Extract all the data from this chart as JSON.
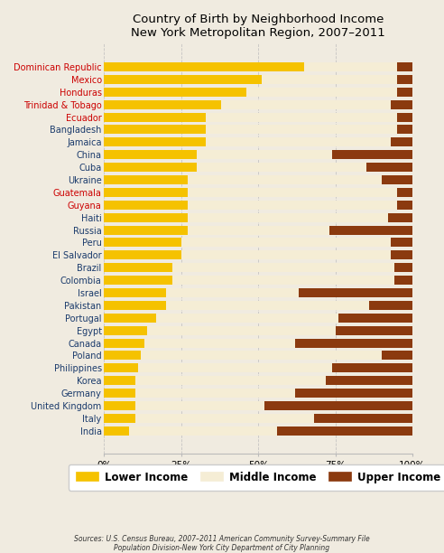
{
  "title": "Country of Birth by Neighborhood Income\nNew York Metropolitan Region, 2007–2011",
  "title_fontsize": 9.5,
  "categories": [
    "Dominican Republic",
    "Mexico",
    "Honduras",
    "Trinidad & Tobago",
    "Ecuador",
    "Bangladesh",
    "Jamaica",
    "China",
    "Cuba",
    "Ukraine",
    "Guatemala",
    "Guyana",
    "Haiti",
    "Russia",
    "Peru",
    "El Salvador",
    "Brazil",
    "Colombia",
    "Israel",
    "Pakistan",
    "Portugal",
    "Egypt",
    "Canada",
    "Poland",
    "Philippines",
    "Korea",
    "Germany",
    "United Kingdom",
    "Italy",
    "India"
  ],
  "lower": [
    65,
    51,
    46,
    38,
    33,
    33,
    33,
    30,
    30,
    27,
    27,
    27,
    27,
    27,
    25,
    25,
    22,
    22,
    20,
    20,
    17,
    14,
    13,
    12,
    11,
    10,
    10,
    10,
    10,
    8
  ],
  "middle": [
    30,
    44,
    49,
    55,
    62,
    62,
    60,
    44,
    55,
    63,
    68,
    68,
    65,
    46,
    68,
    68,
    72,
    72,
    43,
    66,
    59,
    61,
    49,
    78,
    63,
    62,
    52,
    42,
    58,
    48
  ],
  "upper": [
    5,
    5,
    5,
    7,
    5,
    5,
    7,
    26,
    15,
    10,
    5,
    5,
    8,
    27,
    7,
    7,
    6,
    6,
    37,
    14,
    24,
    25,
    38,
    10,
    26,
    28,
    38,
    48,
    32,
    44
  ],
  "lower_color": "#F5C200",
  "middle_color": "#F5EDD5",
  "upper_color": "#8B3A0F",
  "red_labels": [
    "Dominican Republic",
    "Mexico",
    "Honduras",
    "Trinidad & Tobago",
    "Ecuador",
    "Guatemala",
    "Guyana"
  ],
  "label_color_red": "#CC0000",
  "label_color_blue": "#1A3A6B",
  "ylabel_fontsize": 7,
  "tick_fontsize": 7.5,
  "legend_fontsize": 8.5,
  "source_text": "Sources: U.S. Census Bureau, 2007–2011 American Community Survey-Summary File\nPopulation Division-New York City Department of City Planning",
  "background_color": "#F0EBE0",
  "bar_height": 0.72
}
